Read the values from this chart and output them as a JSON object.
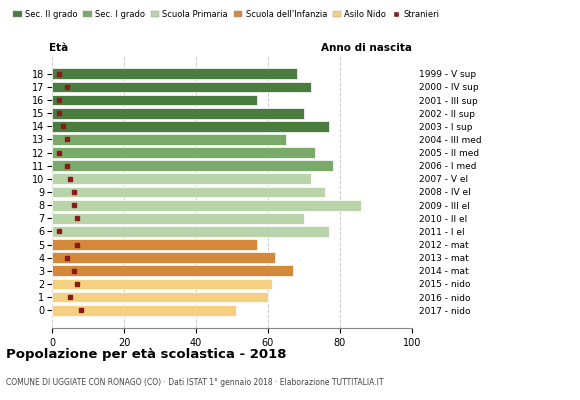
{
  "ages": [
    18,
    17,
    16,
    15,
    14,
    13,
    12,
    11,
    10,
    9,
    8,
    7,
    6,
    5,
    4,
    3,
    2,
    1,
    0
  ],
  "anni_nascita": [
    "1999 - V sup",
    "2000 - IV sup",
    "2001 - III sup",
    "2002 - II sup",
    "2003 - I sup",
    "2004 - III med",
    "2005 - II med",
    "2006 - I med",
    "2007 - V el",
    "2008 - IV el",
    "2009 - III el",
    "2010 - II el",
    "2011 - I el",
    "2012 - mat",
    "2013 - mat",
    "2014 - mat",
    "2015 - nido",
    "2016 - nido",
    "2017 - nido"
  ],
  "bar_values": [
    68,
    72,
    57,
    70,
    77,
    65,
    73,
    78,
    72,
    76,
    86,
    70,
    77,
    57,
    62,
    67,
    61,
    60,
    51
  ],
  "stranieri_values": [
    2,
    4,
    2,
    2,
    3,
    4,
    2,
    4,
    5,
    6,
    6,
    7,
    2,
    7,
    4,
    6,
    7,
    5,
    8
  ],
  "category_colors": [
    "#4a7c3f",
    "#4a7c3f",
    "#4a7c3f",
    "#4a7c3f",
    "#4a7c3f",
    "#7aaa6a",
    "#7aaa6a",
    "#7aaa6a",
    "#b8d4a8",
    "#b8d4a8",
    "#b8d4a8",
    "#b8d4a8",
    "#b8d4a8",
    "#d4893a",
    "#d4893a",
    "#d4893a",
    "#f5d080",
    "#f5d080",
    "#f5d080"
  ],
  "stranieri_color": "#8b1a1a",
  "title": "Popolazione per età scolastica - 2018",
  "subtitle": "COMUNE DI UGGIATE CON RONAGO (CO) · Dati ISTAT 1° gennaio 2018 · Elaborazione TUTTITALIA.IT",
  "xlabel_eta": "Età",
  "xlabel_anno": "Anno di nascita",
  "xmax": 100,
  "legend_labels": [
    "Sec. II grado",
    "Sec. I grado",
    "Scuola Primaria",
    "Scuola dell'Infanzia",
    "Asilo Nido",
    "Stranieri"
  ],
  "legend_colors": [
    "#4a7c3f",
    "#7aaa6a",
    "#b8d4a8",
    "#d4893a",
    "#f5d080",
    "#8b1a1a"
  ],
  "bg_color": "#ffffff",
  "grid_color": "#cccccc"
}
